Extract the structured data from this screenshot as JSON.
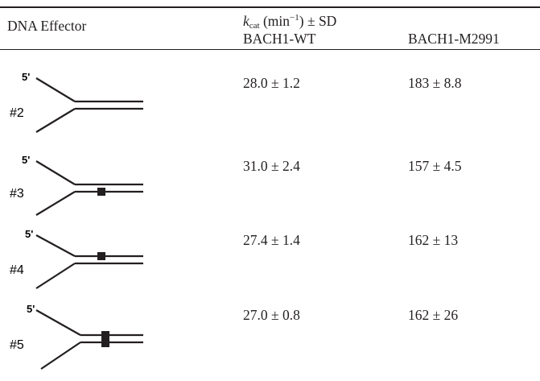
{
  "header": {
    "col_effector": "DNA Effector",
    "kcat_symbol_k": "k",
    "kcat_symbol_sub": "cat",
    "kcat_unit_open": " (min",
    "kcat_unit_sup": "−1",
    "kcat_unit_close": ") ± SD",
    "col_wt": "BACH1-WT",
    "col_mut": "BACH1-M2991"
  },
  "rows": [
    {
      "id": "#2",
      "five_prime": "5'",
      "wt": "28.0 ± 1.2",
      "mut": "183 ± 8.8"
    },
    {
      "id": "#3",
      "five_prime": "5'",
      "wt": "31.0 ± 2.4",
      "mut": "157 ± 4.5"
    },
    {
      "id": "#4",
      "five_prime": "5'",
      "wt": "27.4 ± 1.4",
      "mut": "162 ± 13"
    },
    {
      "id": "#5",
      "five_prime": "5'",
      "wt": "27.0 ± 0.8",
      "mut": "162 ± 26"
    }
  ]
}
